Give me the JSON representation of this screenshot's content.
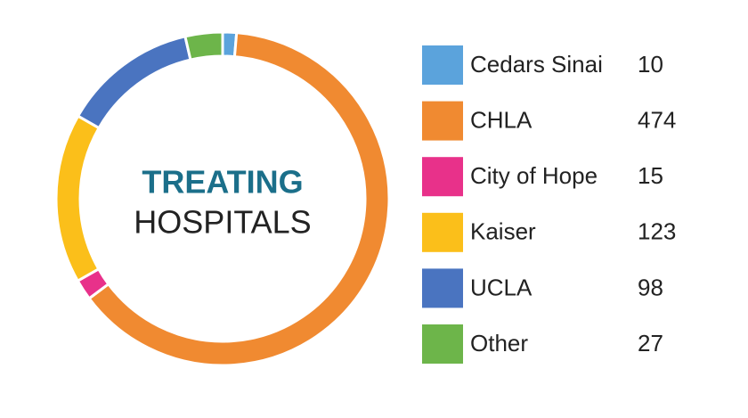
{
  "chart_data": {
    "type": "donut",
    "title": "TREATING",
    "subtitle": "HOSPITALS",
    "categories": [
      "Cedars Sinai",
      "CHLA",
      "City of Hope",
      "Kaiser",
      "UCLA",
      "Other"
    ],
    "values": [
      10,
      474,
      15,
      123,
      98,
      27
    ],
    "colors": [
      "#5ba3dc",
      "#f08a31",
      "#e8318a",
      "#fbbf1a",
      "#4a74c0",
      "#6db54a"
    ],
    "legend": "right"
  }
}
